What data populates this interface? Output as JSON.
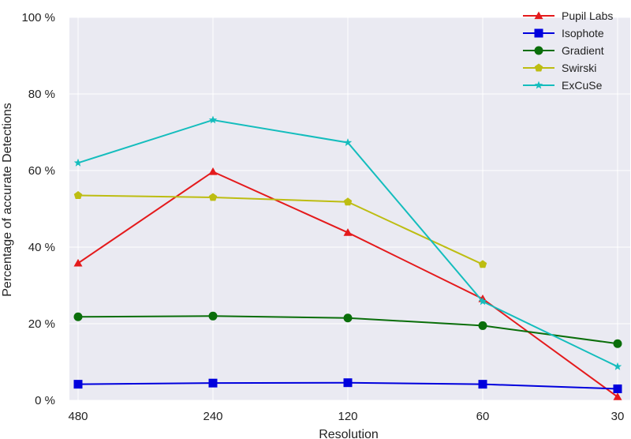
{
  "chart_data": {
    "type": "line",
    "xlabel": "Resolution",
    "ylabel": "Percentage of accurate Detections",
    "categories": [
      "480",
      "240",
      "120",
      "60",
      "30"
    ],
    "yticks": [
      0,
      20,
      40,
      60,
      80,
      100
    ],
    "ytick_suffix": " %",
    "ylim": [
      0,
      100
    ],
    "grid": true,
    "legend_position": "top-right",
    "series": [
      {
        "name": "Pupil Labs",
        "color": "#e41a1c",
        "marker": "triangle",
        "values": [
          35.8,
          59.7,
          43.8,
          26.5,
          0.9
        ]
      },
      {
        "name": "Isophote",
        "color": "#0000dd",
        "marker": "square",
        "values": [
          4.2,
          4.5,
          4.6,
          4.2,
          3.0
        ]
      },
      {
        "name": "Gradient",
        "color": "#0a6e0a",
        "marker": "circle",
        "values": [
          21.8,
          22.0,
          21.5,
          19.5,
          14.8
        ]
      },
      {
        "name": "Swirski",
        "color": "#bdbd12",
        "marker": "pentagon",
        "values": [
          53.5,
          53.0,
          51.8,
          35.5,
          null
        ]
      },
      {
        "name": "ExCuSe",
        "color": "#14bdbd",
        "marker": "star",
        "values": [
          62.0,
          73.2,
          67.3,
          25.8,
          8.8
        ]
      }
    ]
  }
}
